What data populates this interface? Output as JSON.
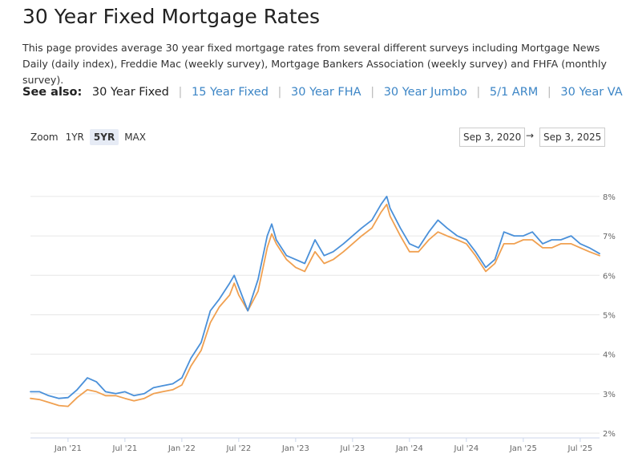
{
  "page": {
    "title": "30 Year Fixed Mortgage Rates",
    "intro": "This page provides average 30 year fixed mortgage rates from several different surveys including Mortgage News Daily (daily index), Freddie Mac (weekly survey), Mortgage Bankers Association (weekly survey) and FHFA (monthly survey)."
  },
  "see_also": {
    "label": "See also:",
    "current": "30 Year Fixed",
    "links": [
      "15 Year Fixed",
      "30 Year FHA",
      "30 Year Jumbo",
      "5/1 ARM",
      "30 Year VA"
    ]
  },
  "zoom": {
    "label": "Zoom",
    "options": [
      "1YR",
      "5YR",
      "MAX"
    ],
    "active": "5YR"
  },
  "range": {
    "from": "Sep 3, 2020",
    "arrow": "→",
    "to": "Sep 3, 2025"
  },
  "colors": {
    "mnd": "#4a90d9",
    "freddie": "#f0a050",
    "link": "#3d86c6"
  },
  "chart_data": {
    "type": "line",
    "title": "",
    "xlabel": "",
    "ylabel": "",
    "x_range": [
      2020.67,
      2025.67
    ],
    "ylim": [
      2,
      8.1
    ],
    "grid": true,
    "x_ticks": [
      {
        "x": 2021.0,
        "label": "Jan '21"
      },
      {
        "x": 2021.5,
        "label": "Jul '21"
      },
      {
        "x": 2022.0,
        "label": "Jan '22"
      },
      {
        "x": 2022.5,
        "label": "Jul '22"
      },
      {
        "x": 2023.0,
        "label": "Jan '23"
      },
      {
        "x": 2023.5,
        "label": "Jul '23"
      },
      {
        "x": 2024.0,
        "label": "Jan '24"
      },
      {
        "x": 2024.5,
        "label": "Jul '24"
      },
      {
        "x": 2025.0,
        "label": "Jan '25"
      },
      {
        "x": 2025.5,
        "label": "Jul '25"
      }
    ],
    "y_ticks": [
      {
        "y": 2,
        "label": "2%"
      },
      {
        "y": 3,
        "label": "3%"
      },
      {
        "y": 4,
        "label": "4%"
      },
      {
        "y": 5,
        "label": "5%"
      },
      {
        "y": 6,
        "label": "6%"
      },
      {
        "y": 7,
        "label": "7%"
      },
      {
        "y": 8,
        "label": "8%"
      }
    ],
    "series": [
      {
        "name": "Mortgage News Daily",
        "color": "#4a90d9",
        "x": [
          2020.67,
          2020.75,
          2020.83,
          2020.92,
          2021.0,
          2021.08,
          2021.17,
          2021.25,
          2021.33,
          2021.42,
          2021.5,
          2021.58,
          2021.67,
          2021.75,
          2021.83,
          2021.92,
          2022.0,
          2022.08,
          2022.17,
          2022.25,
          2022.33,
          2022.42,
          2022.46,
          2022.5,
          2022.58,
          2022.67,
          2022.75,
          2022.79,
          2022.83,
          2022.92,
          2023.0,
          2023.08,
          2023.17,
          2023.25,
          2023.33,
          2023.42,
          2023.5,
          2023.58,
          2023.67,
          2023.75,
          2023.8,
          2023.83,
          2023.92,
          2024.0,
          2024.08,
          2024.17,
          2024.25,
          2024.33,
          2024.42,
          2024.5,
          2024.58,
          2024.67,
          2024.75,
          2024.83,
          2024.92,
          2025.0,
          2025.08,
          2025.17,
          2025.25,
          2025.33,
          2025.42,
          2025.5,
          2025.58,
          2025.67
        ],
        "y": [
          3.05,
          3.05,
          2.95,
          2.88,
          2.9,
          3.1,
          3.4,
          3.3,
          3.05,
          3.0,
          3.05,
          2.95,
          3.0,
          3.15,
          3.2,
          3.25,
          3.4,
          3.9,
          4.3,
          5.1,
          5.4,
          5.8,
          6.0,
          5.7,
          5.1,
          5.9,
          7.0,
          7.3,
          6.9,
          6.5,
          6.4,
          6.3,
          6.9,
          6.5,
          6.6,
          6.8,
          7.0,
          7.2,
          7.4,
          7.8,
          8.0,
          7.7,
          7.2,
          6.8,
          6.7,
          7.1,
          7.4,
          7.2,
          7.0,
          6.9,
          6.6,
          6.2,
          6.4,
          7.1,
          7.0,
          7.0,
          7.1,
          6.8,
          6.9,
          6.9,
          7.0,
          6.8,
          6.7,
          6.55
        ]
      },
      {
        "name": "Freddie Mac",
        "color": "#f0a050",
        "x": [
          2020.67,
          2020.75,
          2020.83,
          2020.92,
          2021.0,
          2021.08,
          2021.17,
          2021.25,
          2021.33,
          2021.42,
          2021.5,
          2021.58,
          2021.67,
          2021.75,
          2021.83,
          2021.92,
          2022.0,
          2022.08,
          2022.17,
          2022.25,
          2022.33,
          2022.42,
          2022.46,
          2022.5,
          2022.58,
          2022.67,
          2022.75,
          2022.79,
          2022.83,
          2022.92,
          2023.0,
          2023.08,
          2023.17,
          2023.25,
          2023.33,
          2023.42,
          2023.5,
          2023.58,
          2023.67,
          2023.75,
          2023.8,
          2023.83,
          2023.92,
          2024.0,
          2024.08,
          2024.17,
          2024.25,
          2024.33,
          2024.42,
          2024.5,
          2024.58,
          2024.67,
          2024.75,
          2024.83,
          2024.92,
          2025.0,
          2025.08,
          2025.17,
          2025.25,
          2025.33,
          2025.42,
          2025.5,
          2025.58,
          2025.67
        ],
        "y": [
          2.88,
          2.85,
          2.78,
          2.7,
          2.68,
          2.9,
          3.1,
          3.05,
          2.95,
          2.95,
          2.88,
          2.82,
          2.88,
          3.0,
          3.05,
          3.1,
          3.22,
          3.7,
          4.1,
          4.8,
          5.2,
          5.5,
          5.8,
          5.5,
          5.1,
          5.6,
          6.7,
          7.05,
          6.8,
          6.4,
          6.2,
          6.1,
          6.6,
          6.3,
          6.4,
          6.6,
          6.8,
          7.0,
          7.2,
          7.6,
          7.8,
          7.5,
          7.0,
          6.6,
          6.6,
          6.9,
          7.1,
          7.0,
          6.9,
          6.8,
          6.5,
          6.1,
          6.3,
          6.8,
          6.8,
          6.9,
          6.9,
          6.7,
          6.7,
          6.8,
          6.8,
          6.7,
          6.6,
          6.5
        ]
      }
    ]
  }
}
